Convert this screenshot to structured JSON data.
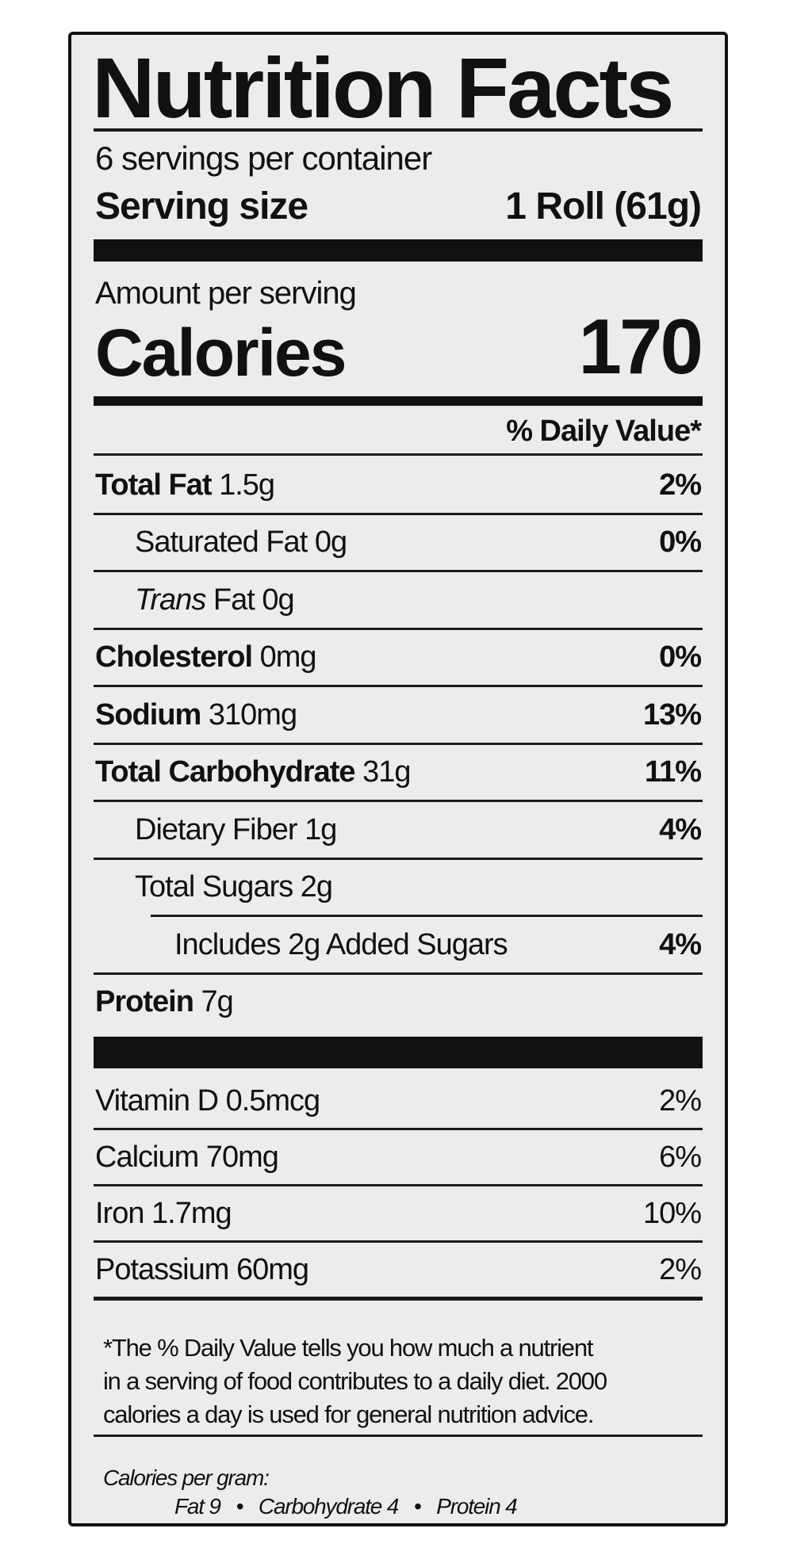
{
  "title": "Nutrition Facts",
  "servings_per_container": "6 servings per container",
  "serving_size_label": "Serving size",
  "serving_size_value": "1 Roll (61g)",
  "amount_per_serving": "Amount per serving",
  "calories_label": "Calories",
  "calories_value": "170",
  "daily_value_header": "% Daily Value*",
  "nutrients": [
    {
      "name": "Total Fat",
      "amount": "1.5g",
      "dv": "2%"
    },
    {
      "name": "Saturated Fat",
      "amount": "0g",
      "dv": "0%"
    },
    {
      "name": "Trans",
      "name_rest": "Fat",
      "amount": "0g",
      "dv": ""
    },
    {
      "name": "Cholesterol",
      "amount": "0mg",
      "dv": "0%"
    },
    {
      "name": "Sodium",
      "amount": "310mg",
      "dv": "13%"
    },
    {
      "name": "Total Carbohydrate",
      "amount": "31g",
      "dv": "11%"
    },
    {
      "name": "Dietary Fiber",
      "amount": "1g",
      "dv": "4%"
    },
    {
      "name": "Total Sugars",
      "amount": "2g",
      "dv": ""
    },
    {
      "name": "Includes 2g Added Sugars",
      "amount": "",
      "dv": "4%"
    },
    {
      "name": "Protein",
      "amount": "7g",
      "dv": ""
    }
  ],
  "vitamins": [
    {
      "name": "Vitamin D 0.5mcg",
      "dv": "2%"
    },
    {
      "name": "Calcium 70mg",
      "dv": "6%"
    },
    {
      "name": "Iron 1.7mg",
      "dv": "10%"
    },
    {
      "name": "Potassium 60mg",
      "dv": "2%"
    }
  ],
  "footnote": [
    "*The % Daily Value tells you how much a nutrient",
    "in a serving of food contributes to a daily diet. 2000",
    "calories a day is used for general nutrition advice."
  ],
  "calories_per_gram_label": "Calories per gram:",
  "calories_per_gram": [
    "Fat 9",
    "Carbohydrate 4",
    "Protein 4"
  ],
  "separator": "•"
}
